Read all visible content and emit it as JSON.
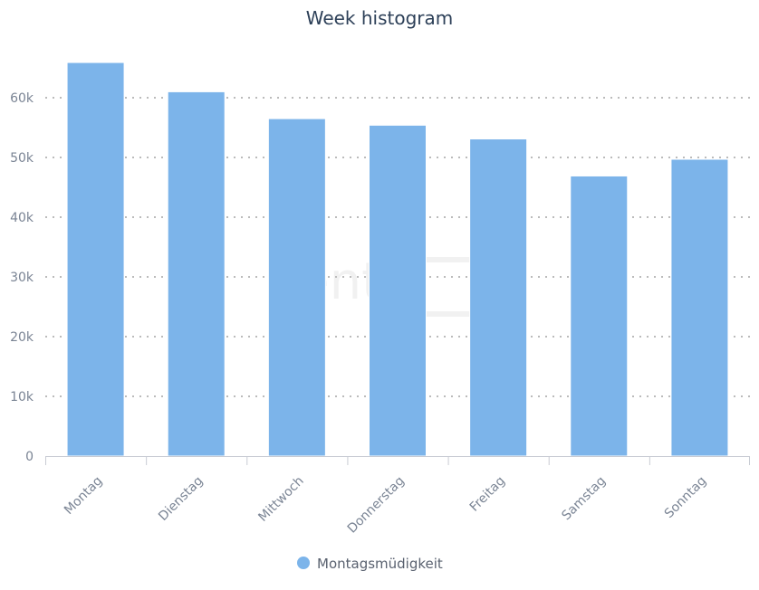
{
  "chart_data": {
    "type": "bar",
    "title": "Week histogram",
    "categories": [
      "Montag",
      "Dienstag",
      "Mittwoch",
      "Donnerstag",
      "Freitag",
      "Samstag",
      "Sonntag"
    ],
    "series": [
      {
        "name": "Montagsmüdigkeit",
        "values": [
          65900,
          61000,
          56500,
          55400,
          53100,
          46900,
          49700
        ],
        "color": "#7cb4ea"
      }
    ],
    "yticks": [
      "0",
      "10k",
      "20k",
      "30k",
      "40k",
      "50k",
      "60k"
    ],
    "ylim": [
      0,
      66000
    ],
    "grid": true,
    "legend": "bottom-center",
    "watermark": "sentione"
  }
}
